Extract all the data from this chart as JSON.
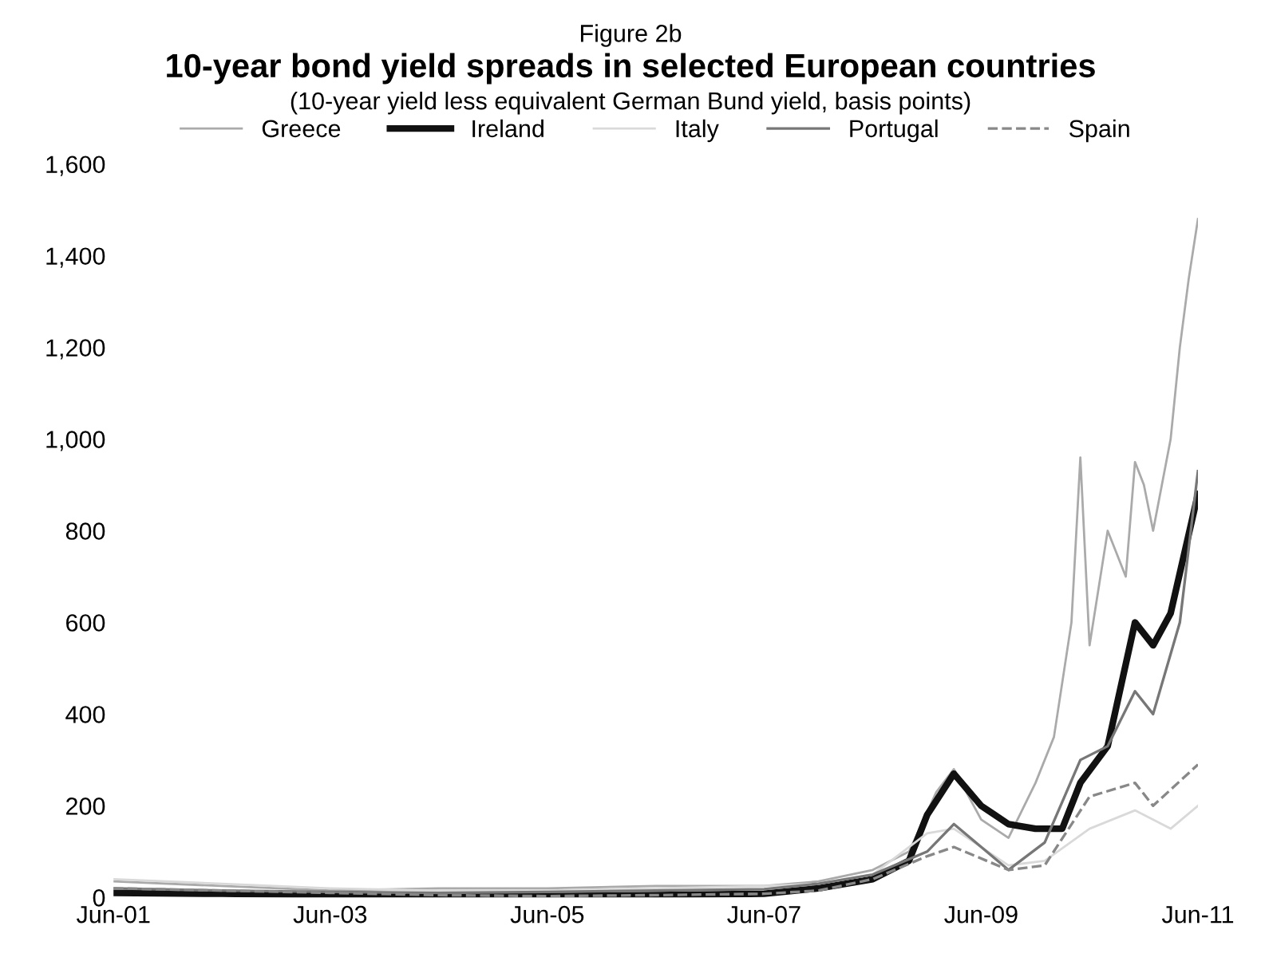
{
  "chart_data": {
    "type": "line",
    "title": "10-year bond yield spreads in selected European countries",
    "subtitle": "(10-year yield less equivalent German Bund yield, basis points)",
    "annotations": [
      "Figure 2b"
    ],
    "legend": "top",
    "grid": false,
    "line_style": "solid",
    "xlim": [
      "2001-06",
      "2011-06"
    ],
    "xticks": [
      {
        "value": "2001-06",
        "label": "Jun-01"
      },
      {
        "value": "2003-06",
        "label": "Jun-03"
      },
      {
        "value": "2005-06",
        "label": "Jun-05"
      },
      {
        "value": "2007-06",
        "label": "Jun-07"
      },
      {
        "value": "2009-06",
        "label": "Jun-09"
      },
      {
        "value": "2011-06",
        "label": "Jun-11"
      }
    ],
    "ylim": [
      0,
      1600
    ],
    "yticks": [
      0,
      200,
      400,
      600,
      800,
      {
        "value": 1000,
        "label": "1,000"
      },
      {
        "value": 1200,
        "label": "1,200"
      },
      {
        "value": 1400,
        "label": "1,400"
      },
      {
        "value": 1600,
        "label": "1,600"
      }
    ],
    "series": [
      {
        "name": "Greece",
        "color": "#aaaaaa",
        "x": [
          "2001-06",
          "2002-06",
          "2003-06",
          "2004-06",
          "2005-06",
          "2006-06",
          "2007-06",
          "2007-12",
          "2008-06",
          "2008-10",
          "2009-01",
          "2009-03",
          "2009-06",
          "2009-09",
          "2009-12",
          "2010-02",
          "2010-04",
          "2010-05",
          "2010-06",
          "2010-08",
          "2010-10",
          "2010-11",
          "2010-12",
          "2011-01",
          "2011-03",
          "2011-04",
          "2011-05",
          "2011-06"
        ],
        "values": [
          35,
          25,
          15,
          20,
          20,
          25,
          25,
          35,
          60,
          100,
          230,
          280,
          170,
          130,
          250,
          350,
          600,
          960,
          550,
          800,
          700,
          950,
          900,
          800,
          1000,
          1200,
          1350,
          1480
        ]
      },
      {
        "name": "Ireland",
        "color": "#111111",
        "x": [
          "2001-06",
          "2002-06",
          "2003-06",
          "2004-06",
          "2005-06",
          "2006-06",
          "2007-06",
          "2007-12",
          "2008-06",
          "2008-10",
          "2008-12",
          "2009-03",
          "2009-06",
          "2009-09",
          "2009-12",
          "2010-03",
          "2010-05",
          "2010-08",
          "2010-11",
          "2011-01",
          "2011-03",
          "2011-06"
        ],
        "values": [
          10,
          8,
          5,
          3,
          3,
          5,
          8,
          20,
          40,
          80,
          180,
          270,
          200,
          160,
          150,
          150,
          250,
          330,
          600,
          550,
          620,
          880
        ]
      },
      {
        "name": "Italy",
        "color": "#d9d9d9",
        "x": [
          "2001-06",
          "2002-06",
          "2003-06",
          "2004-06",
          "2005-06",
          "2006-06",
          "2007-06",
          "2007-12",
          "2008-06",
          "2008-12",
          "2009-03",
          "2009-09",
          "2010-01",
          "2010-06",
          "2010-11",
          "2011-03",
          "2011-06"
        ],
        "values": [
          40,
          30,
          20,
          15,
          15,
          20,
          25,
          30,
          50,
          140,
          150,
          70,
          80,
          150,
          190,
          150,
          200
        ]
      },
      {
        "name": "Portugal",
        "color": "#777777",
        "x": [
          "2001-06",
          "2002-06",
          "2003-06",
          "2004-06",
          "2005-06",
          "2006-06",
          "2007-06",
          "2007-12",
          "2008-06",
          "2008-12",
          "2009-03",
          "2009-09",
          "2010-01",
          "2010-05",
          "2010-08",
          "2010-11",
          "2011-01",
          "2011-04",
          "2011-06"
        ],
        "values": [
          20,
          15,
          12,
          10,
          12,
          15,
          18,
          30,
          50,
          100,
          160,
          60,
          120,
          300,
          330,
          450,
          400,
          600,
          930
        ]
      },
      {
        "name": "Spain",
        "color": "#888888",
        "line_style": "dashed",
        "x": [
          "2001-06",
          "2002-06",
          "2003-06",
          "2004-06",
          "2005-06",
          "2006-06",
          "2007-06",
          "2007-12",
          "2008-06",
          "2008-12",
          "2009-03",
          "2009-09",
          "2010-01",
          "2010-06",
          "2010-11",
          "2011-01",
          "2011-06"
        ],
        "values": [
          20,
          15,
          10,
          5,
          3,
          5,
          8,
          15,
          40,
          90,
          110,
          60,
          70,
          220,
          250,
          200,
          290
        ]
      }
    ]
  }
}
